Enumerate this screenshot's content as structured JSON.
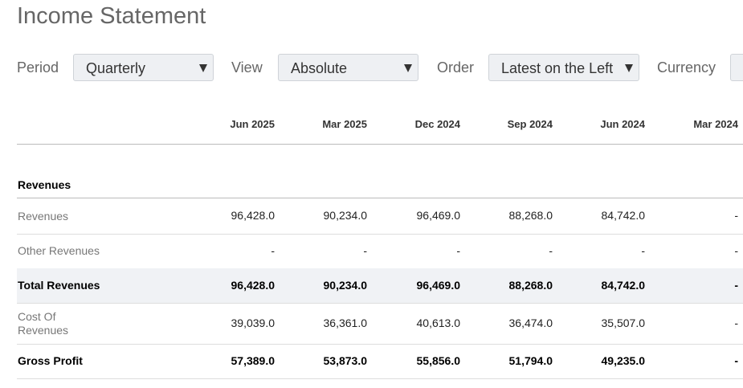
{
  "header": {
    "title": "Income Statement"
  },
  "filters": [
    {
      "label": "Period",
      "value": "Quarterly"
    },
    {
      "label": "View",
      "value": "Absolute"
    },
    {
      "label": "Order",
      "value": "Latest on the Left"
    },
    {
      "label": "Currency"
    }
  ],
  "table": {
    "columns": [
      "Jun 2025",
      "Mar 2025",
      "Dec 2024",
      "Sep 2024",
      "Jun 2024",
      "Mar 2024"
    ],
    "section": "Revenues",
    "rows": [
      {
        "label": "Revenues",
        "bold": false,
        "highlight": false,
        "icon": true,
        "values": [
          "96,428.0",
          "90,234.0",
          "96,469.0",
          "88,268.0",
          "84,742.0",
          "-"
        ]
      },
      {
        "label": "Other Revenues",
        "bold": false,
        "highlight": false,
        "icon": false,
        "values": [
          "-",
          "-",
          "-",
          "-",
          "-",
          "-"
        ]
      },
      {
        "label": "Total Revenues",
        "bold": true,
        "highlight": true,
        "icon": true,
        "values": [
          "96,428.0",
          "90,234.0",
          "96,469.0",
          "88,268.0",
          "84,742.0",
          "-"
        ]
      },
      {
        "label": "Cost Of Revenues",
        "bold": false,
        "highlight": false,
        "icon": true,
        "values": [
          "39,039.0",
          "36,361.0",
          "40,613.0",
          "36,474.0",
          "35,507.0",
          "-"
        ]
      },
      {
        "label": "Gross Profit",
        "bold": true,
        "highlight": false,
        "icon": true,
        "values": [
          "57,389.0",
          "53,873.0",
          "55,856.0",
          "51,794.0",
          "49,235.0",
          "-"
        ]
      }
    ]
  }
}
